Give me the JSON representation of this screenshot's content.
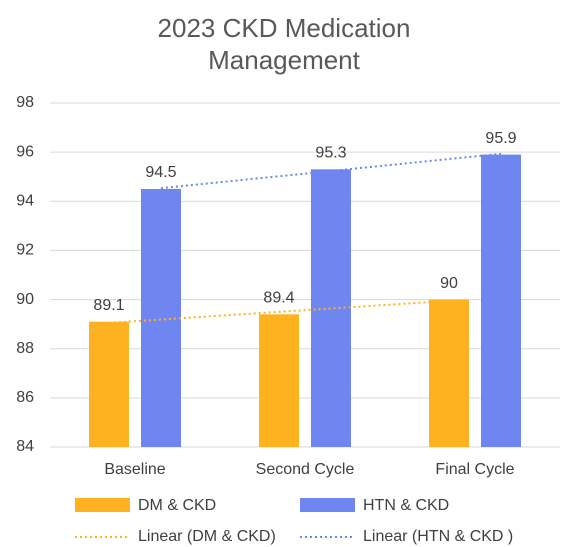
{
  "chart_data": {
    "type": "bar",
    "title": "2023 CKD Medication Management",
    "categories": [
      "Baseline",
      "Second Cycle",
      "Final Cycle"
    ],
    "series": [
      {
        "name": "DM & CKD",
        "color": "#ffb21f",
        "values": [
          89.1,
          89.4,
          90
        ]
      },
      {
        "name": "HTN & CKD",
        "color": "#6f86f0",
        "values": [
          94.5,
          95.3,
          95.9
        ]
      }
    ],
    "trendlines": [
      {
        "name": "Linear (DM & CKD)",
        "series": 0,
        "color": "#ffb21f"
      },
      {
        "name": "Linear (HTN & CKD )",
        "series": 1,
        "color": "#6f86f0"
      }
    ],
    "ylim": [
      84,
      98
    ],
    "yticks": [
      84,
      86,
      88,
      90,
      92,
      94,
      96,
      98
    ],
    "grid": true
  }
}
